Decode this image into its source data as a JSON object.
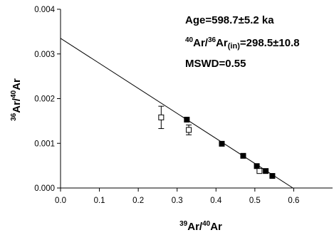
{
  "chart_data": {
    "type": "scatter",
    "title": "",
    "xlabel": {
      "sup": "39",
      "main": "Ar/",
      "sup2": "40",
      "main2": "Ar"
    },
    "ylabel": {
      "sup": "36",
      "main": "Ar/",
      "sup2": "40",
      "main2": "Ar"
    },
    "xlim": [
      0.0,
      0.7
    ],
    "ylim": [
      0.0,
      0.004
    ],
    "x_ticks": [
      "0.0",
      "0.1",
      "0.2",
      "0.3",
      "0.4",
      "0.5",
      "0.6"
    ],
    "x_tick_values": [
      0.0,
      0.1,
      0.2,
      0.3,
      0.4,
      0.5,
      0.6
    ],
    "y_ticks": [
      "0.000",
      "0.001",
      "0.002",
      "0.003",
      "0.004"
    ],
    "y_tick_values": [
      0.0,
      0.001,
      0.002,
      0.003,
      0.004
    ],
    "grid": false,
    "annotations": {
      "age": "Age=598.7±5.2 ka",
      "ratio": {
        "sup1": "40",
        "t1": "Ar/",
        "sup2": "36",
        "t2": "Ar",
        "sub": "(in)",
        "t3": "=298.5±10.8"
      },
      "mswd": "MSWD=0.55"
    },
    "fit_line": {
      "x": [
        0.0,
        0.598
      ],
      "y": [
        0.00335,
        0.0
      ]
    },
    "series": [
      {
        "marker": "filled-square",
        "points": [
          {
            "x": 0.325,
            "y": 0.00153
          },
          {
            "x": 0.415,
            "y": 0.00099
          },
          {
            "x": 0.47,
            "y": 0.00072
          },
          {
            "x": 0.505,
            "y": 0.00049
          },
          {
            "x": 0.528,
            "y": 0.00038
          },
          {
            "x": 0.545,
            "y": 0.00027
          }
        ]
      },
      {
        "marker": "open-square",
        "points": [
          {
            "x": 0.259,
            "y": 0.00158,
            "err": 0.00025
          },
          {
            "x": 0.33,
            "y": 0.0013,
            "err": 0.00011
          },
          {
            "x": 0.512,
            "y": 0.00038,
            "err": 0.0
          }
        ]
      }
    ]
  }
}
